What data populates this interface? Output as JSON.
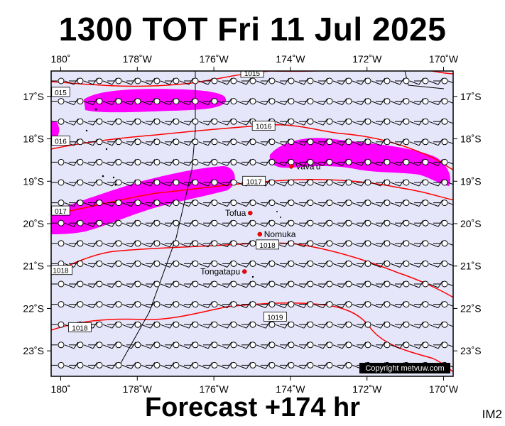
{
  "header": {
    "title": "1300 TOT Fri 11 Jul 2025"
  },
  "footer": {
    "subtitle": "Forecast +174 hr",
    "corner_label": "IM2",
    "copyright": "Copyright metvuw.com"
  },
  "map": {
    "lon_range": [
      -180.25,
      -169.75
    ],
    "lat_range": [
      -23.6,
      -16.4
    ],
    "lon_ticks": [
      "180˚",
      "178˚W",
      "176˚W",
      "174˚W",
      "172˚W",
      "170˚W"
    ],
    "lat_ticks": [
      "17˚S",
      "18˚S",
      "19˚S",
      "20˚S",
      "21˚S",
      "22˚S",
      "23˚S"
    ],
    "colors": {
      "background": "#e6e6fa",
      "isobar": "#ff0000",
      "rain": "#ff00ff",
      "wind": "#000000"
    },
    "places": [
      {
        "name": "Vava'u",
        "lon": -173.98,
        "lat": -18.65
      },
      {
        "name": "Tofua",
        "lon": -175.05,
        "lat": -19.75
      },
      {
        "name": "Nomuka",
        "lon": -174.8,
        "lat": -20.25
      },
      {
        "name": "Tongatapu",
        "lon": -175.2,
        "lat": -21.13
      }
    ],
    "isobar_labels": [
      {
        "text": "1015",
        "lon": -175.0,
        "lat": -16.45
      },
      {
        "text": "015",
        "lon": -180.0,
        "lat": -16.9
      },
      {
        "text": "1016",
        "lon": -174.7,
        "lat": -17.7
      },
      {
        "text": "016",
        "lon": -180.0,
        "lat": -18.05
      },
      {
        "text": "1017",
        "lon": -174.95,
        "lat": -19.0
      },
      {
        "text": "017",
        "lon": -180.0,
        "lat": -19.7
      },
      {
        "text": "1018",
        "lon": -174.6,
        "lat": -20.5
      },
      {
        "text": "1018",
        "lon": -180.0,
        "lat": -21.1
      },
      {
        "text": "1019",
        "lon": -174.4,
        "lat": -22.2
      },
      {
        "text": "1018",
        "lon": -179.5,
        "lat": -22.45
      }
    ]
  }
}
